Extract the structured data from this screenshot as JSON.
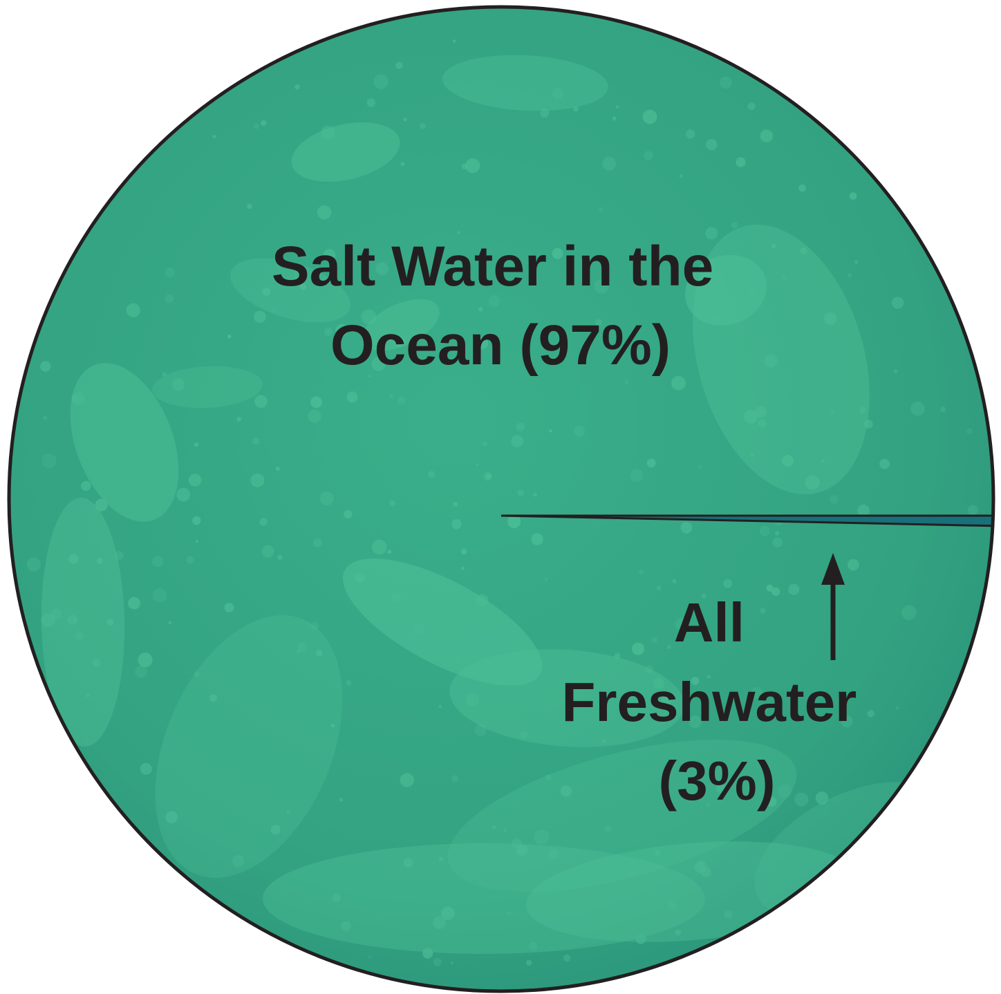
{
  "chart_data": {
    "type": "pie",
    "title": "",
    "slices": [
      {
        "label_lines": [
          "Salt Water in the",
          "Ocean (97%)"
        ],
        "value": 97,
        "color": "#34a583"
      },
      {
        "label_lines": [
          "All",
          "Freshwater",
          "(3%)"
        ],
        "value": 3,
        "color": "#17707a"
      }
    ],
    "outline_color": "#231f20",
    "texture_color": "#5ccfa3",
    "annotation": "arrow pointing up to the freshwater slice"
  }
}
